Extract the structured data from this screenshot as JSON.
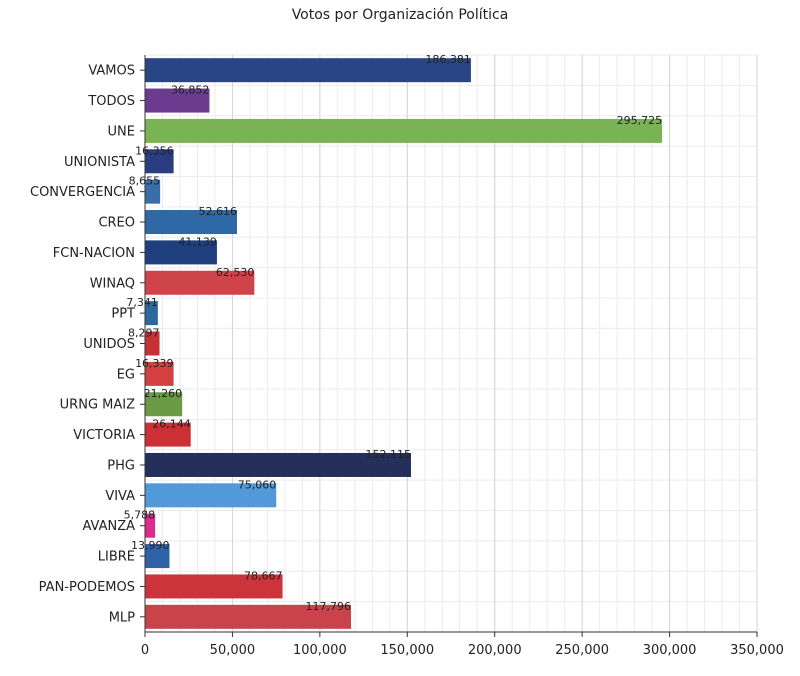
{
  "chart_data": {
    "type": "bar",
    "orientation": "horizontal",
    "title": "Votos por Organización Política",
    "xlabel": "",
    "ylabel": "",
    "xlim": [
      0,
      350000
    ],
    "x_ticks": [
      0,
      50000,
      100000,
      150000,
      200000,
      250000,
      300000,
      350000
    ],
    "x_tick_labels": [
      "0",
      "50,000",
      "100,000",
      "150,000",
      "200,000",
      "250,000",
      "300,000",
      "350,000"
    ],
    "grid": true,
    "legend": "none",
    "categories": [
      "VAMOS",
      "TODOS",
      "UNE",
      "UNIONISTA",
      "CONVERGENCIA",
      "CREO",
      "FCN-NACION",
      "WINAQ",
      "PPT",
      "UNIDOS",
      "EG",
      "URNG MAIZ",
      "VICTORIA",
      "PHG",
      "VIVA",
      "AVANZA",
      "LIBRE",
      "PAN-PODEMOS",
      "MLP"
    ],
    "values": [
      186381,
      36852,
      295725,
      16356,
      8655,
      52616,
      41139,
      62530,
      7341,
      8297,
      16339,
      21260,
      26144,
      152115,
      75060,
      5788,
      13990,
      78667,
      117796
    ],
    "value_labels": [
      "186,381",
      "36,852",
      "295,725",
      "16,356",
      "8,655",
      "52,616",
      "41,139",
      "62,530",
      "7,341",
      "8,297",
      "16,339",
      "21,260",
      "26,144",
      "152,115",
      "75,060",
      "5,788",
      "13,990",
      "78,667",
      "117,796"
    ],
    "colors": [
      "#2a4585",
      "#6a3b8f",
      "#7ab354",
      "#293d80",
      "#3a6ea8",
      "#2f68a6",
      "#1f3f7f",
      "#cf4448",
      "#2e679e",
      "#c63138",
      "#d2403f",
      "#6b9a45",
      "#cc3035",
      "#24305a",
      "#5199d8",
      "#de2a8a",
      "#2f62a6",
      "#cc343c",
      "#c9434b"
    ]
  }
}
